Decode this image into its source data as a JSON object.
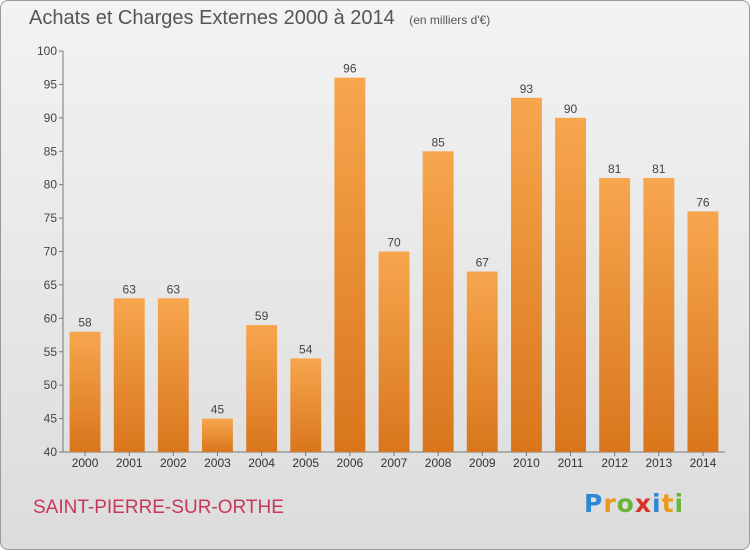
{
  "header": {
    "title": "Achats et Charges Externes 2000 à 2014",
    "unit": "(en milliers d'€)"
  },
  "footer": {
    "town": "SAINT-PIERRE-SUR-ORTHE",
    "logo": "Proxiti"
  },
  "colors": {
    "bar_light": "#f7a64e",
    "bar_dark": "#d9761c",
    "town_text": "#c8385a"
  },
  "chart_data": {
    "type": "bar",
    "title": "Achats et Charges Externes 2000 à 2014",
    "subtitle": "(en milliers d'€)",
    "xlabel": "",
    "ylabel": "",
    "categories": [
      "2000",
      "2001",
      "2002",
      "2003",
      "2004",
      "2005",
      "2006",
      "2007",
      "2008",
      "2009",
      "2010",
      "2011",
      "2012",
      "2013",
      "2014"
    ],
    "values": [
      58,
      63,
      63,
      45,
      59,
      54,
      96,
      70,
      85,
      67,
      93,
      90,
      81,
      81,
      76
    ],
    "ylim": [
      40,
      100
    ],
    "yticks": [
      40,
      45,
      50,
      55,
      60,
      65,
      70,
      75,
      80,
      85,
      90,
      95,
      100
    ],
    "grid": false,
    "legend": "none"
  }
}
